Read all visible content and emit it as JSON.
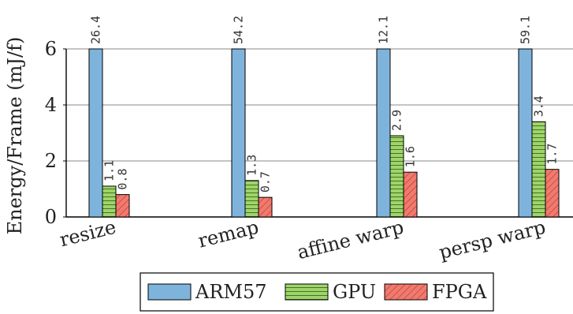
{
  "chart_data": {
    "type": "bar",
    "ylabel": "Energy/Frame (mJ/f)",
    "ylim": [
      0,
      6
    ],
    "yticks": [
      0,
      2,
      4,
      6
    ],
    "categories": [
      "resize",
      "remap",
      "affine warp",
      "persp warp"
    ],
    "series": [
      {
        "name": "ARM57",
        "values": [
          26.4,
          54.2,
          12.1,
          59.1
        ],
        "labels": [
          "26.4",
          "54.2",
          "12.1",
          "59.1"
        ],
        "color": "#7eb4dc",
        "pattern": "none"
      },
      {
        "name": "GPU",
        "values": [
          1.1,
          1.3,
          2.9,
          3.4
        ],
        "labels": [
          "1.1",
          "1.3",
          "2.9",
          "3.4"
        ],
        "color": "#9fd46a",
        "pattern": "horizontal-lines"
      },
      {
        "name": "FPGA",
        "values": [
          0.8,
          0.7,
          1.6,
          1.7
        ],
        "labels": [
          "0.8",
          "0.7",
          "1.6",
          "1.7"
        ],
        "color": "#f07a6e",
        "pattern": "diagonal-lines"
      }
    ],
    "grid": "horizontal",
    "legend": "bottom"
  }
}
